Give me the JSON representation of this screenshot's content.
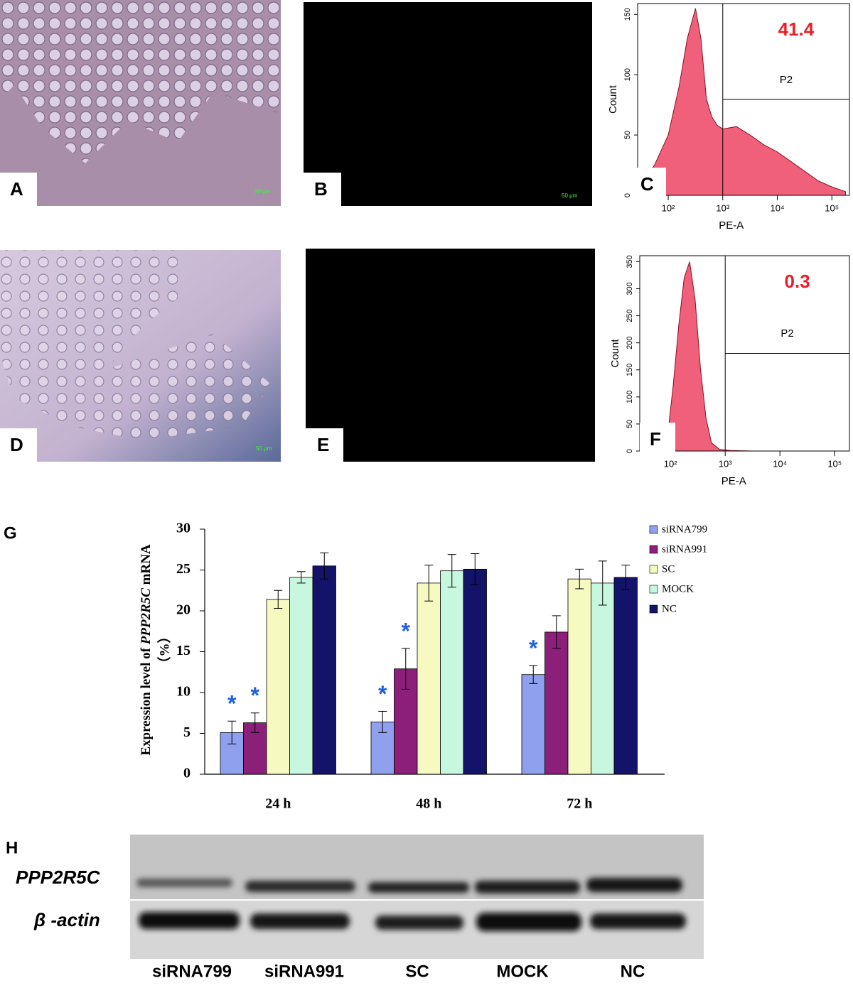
{
  "panels": {
    "A": {
      "label": "A",
      "scale": "50 μm"
    },
    "B": {
      "label": "B",
      "scale": "50 μm"
    },
    "D": {
      "label": "D",
      "scale": "50 μm"
    },
    "E": {
      "label": "E"
    }
  },
  "chart_data": [
    {
      "type": "area",
      "panel_label": "C",
      "ylabel": "Count",
      "xlabel": "PE-A",
      "color": "#f0607a",
      "xlog": true,
      "x": [
        32,
        56,
        100,
        158,
        224,
        316,
        398,
        501,
        631,
        794,
        1000,
        1778,
        3162,
        5623,
        10000,
        17783,
        31623,
        56234,
        100000,
        177828
      ],
      "values": [
        10,
        25,
        50,
        90,
        130,
        155,
        130,
        80,
        65,
        58,
        55,
        57,
        50,
        42,
        36,
        28,
        20,
        12,
        7,
        3
      ],
      "xlim": [
        27.5,
        210000
      ],
      "ylim": [
        0,
        159
      ],
      "xticks": [
        {
          "value": 100,
          "label": "10²"
        },
        {
          "value": 1000,
          "label": "10³"
        },
        {
          "value": 10000,
          "label": "10⁴"
        },
        {
          "value": 100000,
          "label": "10⁵"
        }
      ],
      "yticks": [
        0,
        50,
        100,
        150
      ],
      "gate": {
        "x": 1000,
        "name": "P2",
        "percent": 41.4
      }
    },
    {
      "type": "area",
      "panel_label": "F",
      "ylabel": "Count",
      "xlabel": "PE-A",
      "color": "#f0607a",
      "xlog": true,
      "x": [
        71,
        89,
        112,
        141,
        178,
        224,
        282,
        355,
        447,
        562,
        794,
        1259,
        3162
      ],
      "values": [
        0,
        30,
        120,
        230,
        320,
        350,
        280,
        150,
        60,
        15,
        3,
        1,
        0
      ],
      "xlim": [
        27.5,
        186000
      ],
      "ylim": [
        0,
        361
      ],
      "xticks": [
        {
          "value": 100,
          "label": "10²"
        },
        {
          "value": 1000,
          "label": "10³"
        },
        {
          "value": 10000,
          "label": "10⁴"
        },
        {
          "value": 100000,
          "label": "10⁵"
        }
      ],
      "yticks": [
        0,
        50,
        100,
        150,
        200,
        250,
        300,
        350
      ],
      "gate": {
        "x": 1000,
        "name": "P2",
        "percent": 0.3
      }
    },
    {
      "type": "bar",
      "panel_label": "G",
      "ylabel": [
        "Expression level of ",
        "PPP2R5C",
        " mRNA"
      ],
      "ylabel2": "（%）",
      "categories": [
        "24 h",
        "48 h",
        "72 h"
      ],
      "ylim": [
        0,
        30
      ],
      "yticks": [
        0,
        5,
        10,
        15,
        20,
        25,
        30
      ],
      "significance_marker": "*",
      "series": [
        {
          "name": "siRNA799",
          "color": "#8fa0ee",
          "values": [
            5.1,
            6.4,
            12.2
          ],
          "errors": [
            1.4,
            1.3,
            1.1
          ],
          "significant": [
            true,
            true,
            true
          ]
        },
        {
          "name": "siRNA991",
          "color": "#8b1f7a",
          "values": [
            6.3,
            12.9,
            17.4
          ],
          "errors": [
            1.2,
            2.5,
            2.0
          ],
          "significant": [
            true,
            true,
            false
          ]
        },
        {
          "name": "SC",
          "color": "#f7fac0",
          "values": [
            21.4,
            23.4,
            23.9
          ],
          "errors": [
            1.1,
            2.2,
            1.2
          ],
          "significant": [
            false,
            false,
            false
          ]
        },
        {
          "name": "MOCK",
          "color": "#c8f7e0",
          "values": [
            24.1,
            24.9,
            23.4
          ],
          "errors": [
            0.7,
            2.0,
            2.7
          ],
          "significant": [
            false,
            false,
            false
          ]
        },
        {
          "name": "NC",
          "color": "#13136a",
          "values": [
            25.5,
            25.1,
            24.1
          ],
          "errors": [
            1.6,
            1.9,
            1.5
          ],
          "significant": [
            false,
            false,
            false
          ]
        }
      ]
    }
  ],
  "blot": {
    "label": "H",
    "rows": [
      "PPP2R5C",
      "β -actin"
    ],
    "lanes": [
      "siRNA799",
      "siRNA991",
      "SC",
      "MOCK",
      "NC"
    ]
  }
}
